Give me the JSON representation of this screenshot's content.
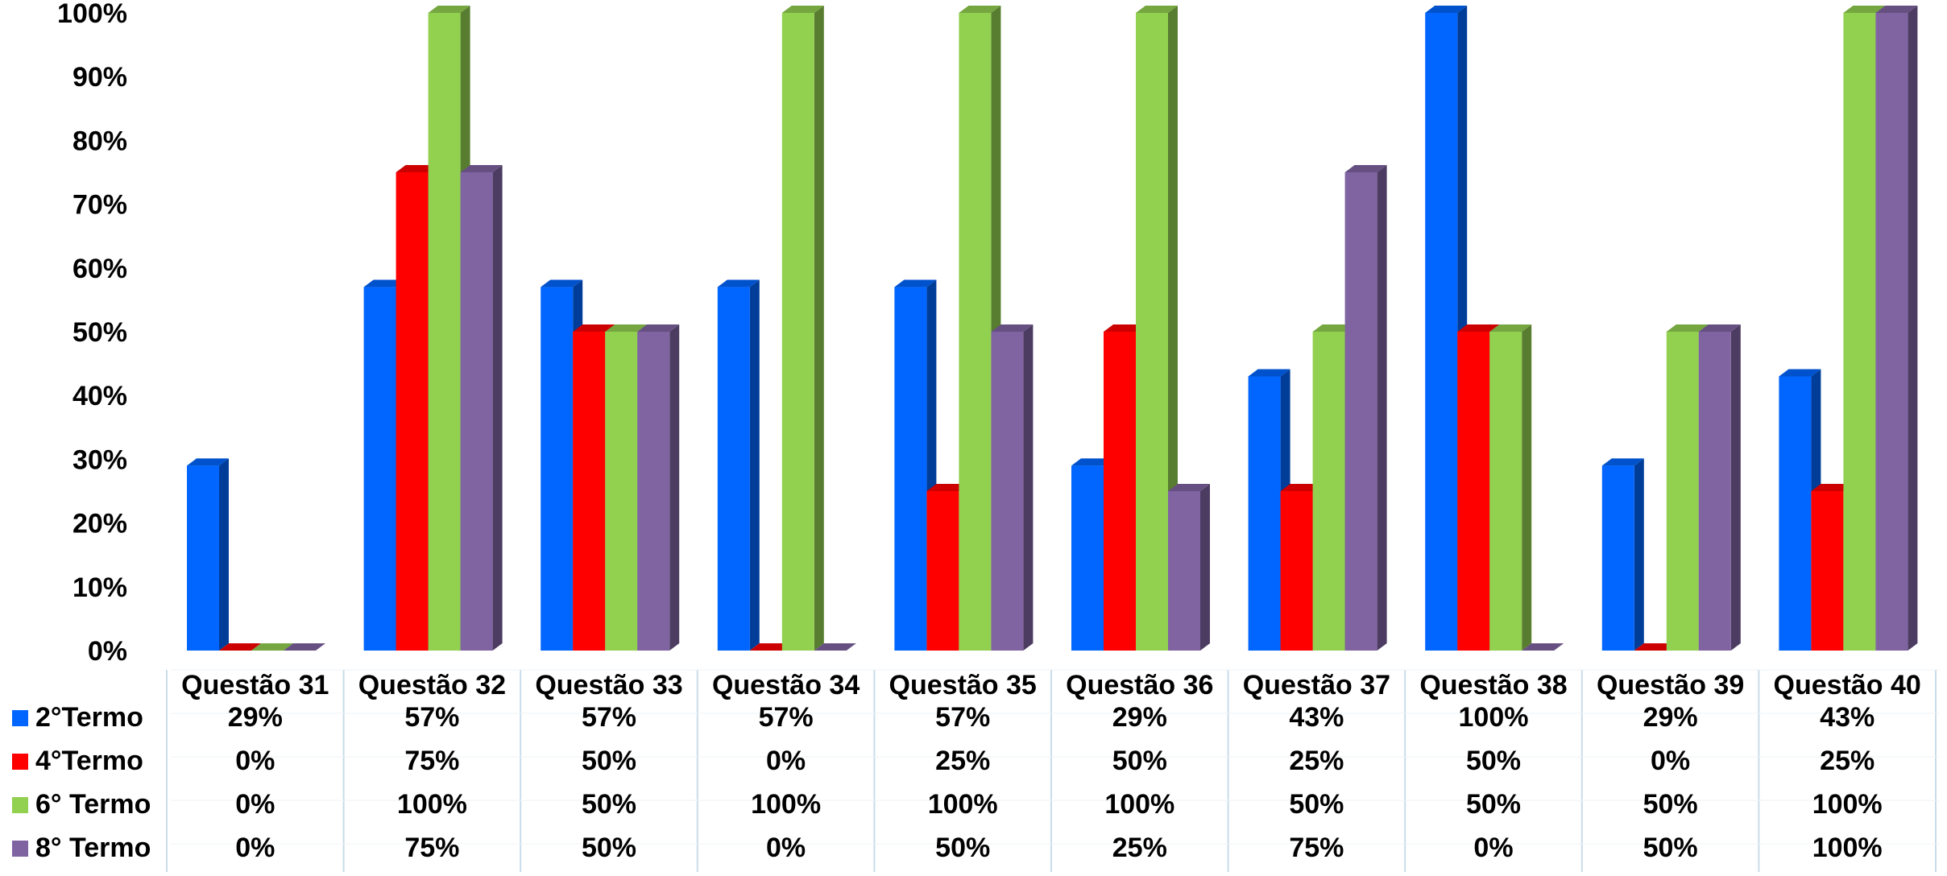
{
  "chart_data": {
    "type": "bar",
    "title": "",
    "xlabel": "",
    "ylabel": "",
    "ylim": [
      0,
      100
    ],
    "y_ticks": [
      "0%",
      "10%",
      "20%",
      "30%",
      "40%",
      "50%",
      "60%",
      "70%",
      "80%",
      "90%",
      "100%"
    ],
    "categories": [
      "Questão 31",
      "Questão 32",
      "Questão 33",
      "Questão 34",
      "Questão 35",
      "Questão 36",
      "Questão 37",
      "Questão 38",
      "Questão 39",
      "Questão 40"
    ],
    "series": [
      {
        "name": "2°Termo",
        "color": "#0066ff",
        "values": [
          29,
          57,
          57,
          57,
          57,
          29,
          43,
          100,
          29,
          43
        ],
        "labels": [
          "29%",
          "57%",
          "57%",
          "57%",
          "57%",
          "29%",
          "43%",
          "100%",
          "29%",
          "43%"
        ]
      },
      {
        "name": "4°Termo",
        "color": "#ff0000",
        "values": [
          0,
          75,
          50,
          0,
          25,
          50,
          25,
          50,
          0,
          25
        ],
        "labels": [
          "0%",
          "75%",
          "50%",
          "0%",
          "25%",
          "50%",
          "25%",
          "50%",
          "0%",
          "25%"
        ]
      },
      {
        "name": "6° Termo",
        "color": "#92d050",
        "values": [
          0,
          100,
          50,
          100,
          100,
          100,
          50,
          50,
          50,
          100
        ],
        "labels": [
          "0%",
          "100%",
          "50%",
          "100%",
          "100%",
          "100%",
          "50%",
          "50%",
          "50%",
          "100%"
        ]
      },
      {
        "name": "8° Termo",
        "color": "#8064a2",
        "values": [
          0,
          75,
          50,
          0,
          50,
          25,
          75,
          0,
          50,
          100
        ],
        "labels": [
          "0%",
          "75%",
          "50%",
          "0%",
          "50%",
          "25%",
          "75%",
          "0%",
          "50%",
          "100%"
        ]
      }
    ],
    "grid": false,
    "legend": "data-table-left",
    "style": "3d-clustered-column"
  }
}
